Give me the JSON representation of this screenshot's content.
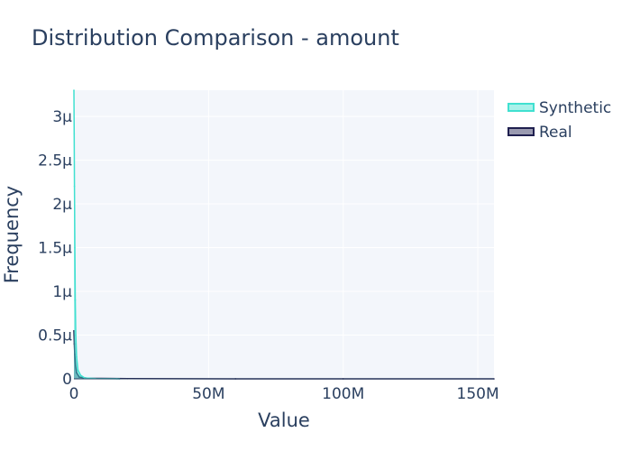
{
  "chart_data": {
    "type": "area",
    "title": "Distribution Comparison - amount",
    "xlabel": "Value",
    "ylabel": "Frequency",
    "xlim": [
      0,
      156000000
    ],
    "ylim": [
      0,
      3.3e-06
    ],
    "x_ticks": [
      {
        "value": 0,
        "label": "0"
      },
      {
        "value": 50000000,
        "label": "50M"
      },
      {
        "value": 100000000,
        "label": "100M"
      },
      {
        "value": 150000000,
        "label": "150M"
      }
    ],
    "y_ticks": [
      {
        "value": 0,
        "label": "0"
      },
      {
        "value": 5e-07,
        "label": "0.5μ"
      },
      {
        "value": 1e-06,
        "label": "1μ"
      },
      {
        "value": 1.5e-06,
        "label": "1.5μ"
      },
      {
        "value": 2e-06,
        "label": "2μ"
      },
      {
        "value": 2.5e-06,
        "label": "2.5μ"
      },
      {
        "value": 3e-06,
        "label": "3μ"
      }
    ],
    "grid": true,
    "legend_position": "top-right",
    "series": [
      {
        "name": "Synthetic",
        "color": "#40e0d0",
        "fill": "rgba(64,224,208,0.45)",
        "x": [
          0,
          100000,
          200000,
          350000,
          500000,
          700000,
          1000000,
          1500000,
          2500000,
          4000000,
          8000000,
          16000000,
          17000000
        ],
        "y": [
          3.3e-06,
          2.8e-06,
          2.2e-06,
          1.5e-06,
          9e-07,
          5e-07,
          2.5e-07,
          1e-07,
          4e-08,
          1e-08,
          3e-09,
          1e-09,
          0
        ]
      },
      {
        "name": "Real",
        "color": "#1f1f4f",
        "fill": "rgba(31,31,79,0.45)",
        "x": [
          0,
          150000,
          300000,
          600000,
          1000000,
          2000000,
          5000000,
          20000000,
          60000000,
          100000000,
          156000000
        ],
        "y": [
          5.5e-07,
          4e-07,
          2.8e-07,
          1.5e-07,
          7e-08,
          2e-08,
          6e-09,
          2e-09,
          5e-10,
          2e-10,
          0
        ]
      }
    ]
  }
}
